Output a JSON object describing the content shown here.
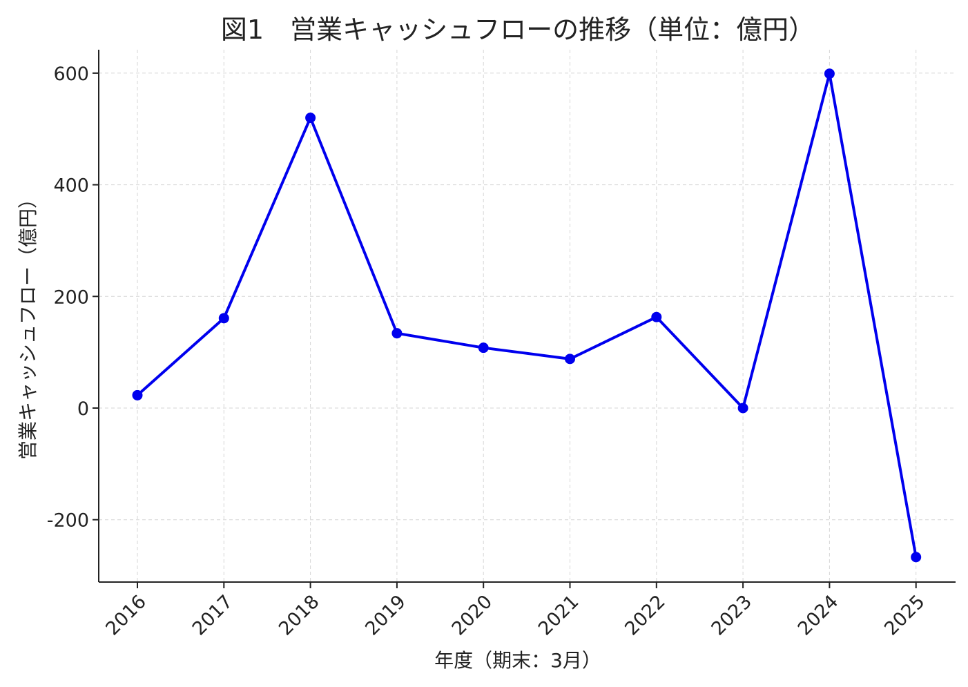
{
  "chart_data": {
    "type": "line",
    "title": "図1　営業キャッシュフローの推移（単位：億円）",
    "xlabel": "年度（期末：3月）",
    "ylabel": "営業キャッシュフロー（億円）",
    "categories": [
      "2016",
      "2017",
      "2018",
      "2019",
      "2020",
      "2021",
      "2022",
      "2023",
      "2024",
      "2025"
    ],
    "series": [
      {
        "values": [
          23,
          161,
          520,
          134,
          108,
          88,
          163,
          0,
          599,
          -267
        ],
        "color": "#0000ee"
      }
    ],
    "ylim": [
      -310,
      645
    ],
    "yticks": [
      -200,
      0,
      200,
      400,
      600
    ],
    "ytick_labels": [
      "-200",
      "0",
      "200",
      "400",
      "600"
    ],
    "grid": true,
    "marker": "circle",
    "colors": {
      "line": "#0000ee",
      "axis": "#222222",
      "grid": "#cfcfcf"
    }
  }
}
